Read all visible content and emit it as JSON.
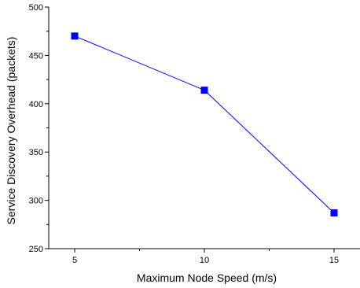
{
  "chart_data": {
    "type": "line",
    "title": "",
    "xlabel": "Maximum Node Speed (m/s)",
    "ylabel": "Service Discovery Overhead (packets)",
    "x": [
      5,
      10,
      15
    ],
    "series": [
      {
        "name": "",
        "values": [
          470,
          414,
          287
        ],
        "color": "#0000ff",
        "marker": "square"
      }
    ],
    "xlim": [
      4,
      16
    ],
    "ylim": [
      250,
      500
    ],
    "xticks": [
      5,
      10,
      15
    ],
    "yticks": [
      250,
      300,
      350,
      400,
      450,
      500
    ],
    "xtick_labels": [
      "5",
      "10",
      "15"
    ],
    "ytick_labels": [
      "250",
      "300",
      "350",
      "400",
      "450",
      "500"
    ],
    "grid": false,
    "legend": "none"
  }
}
